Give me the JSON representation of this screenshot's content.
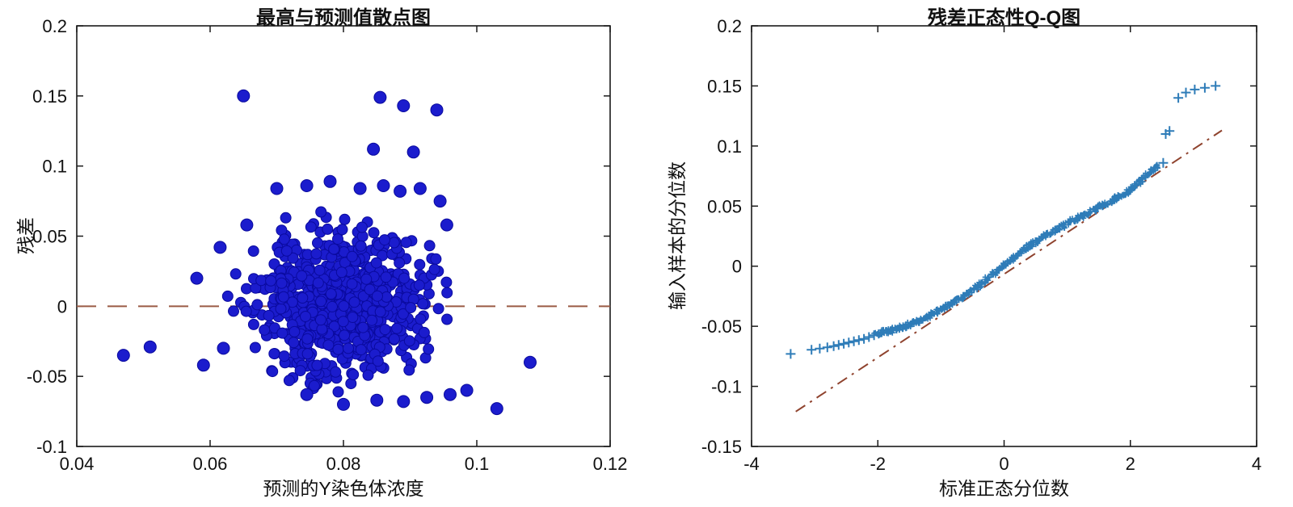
{
  "figure": {
    "background": "#ffffff",
    "axis_color": "#1a1a1a"
  },
  "chart_data": [
    {
      "type": "scatter",
      "title": "最高与预测值散点图",
      "xlabel": "预测的Y染色体浓度",
      "ylabel": "残差",
      "xlim": [
        0.04,
        0.12
      ],
      "ylim": [
        -0.1,
        0.2
      ],
      "xticks": [
        0.04,
        0.06,
        0.08,
        0.1,
        0.12
      ],
      "yticks": [
        -0.1,
        -0.05,
        0,
        0.05,
        0.1,
        0.15,
        0.2
      ],
      "grid": false,
      "legend_position": "none",
      "marker": {
        "shape": "circle",
        "fill": "#1b1ccd",
        "edge": "#0a0a9e",
        "radius": 6.5
      },
      "ref_line": {
        "type": "horizontal",
        "y": 0,
        "style": "dashed",
        "color": "#9a5b45",
        "width": 2
      },
      "cluster": {
        "center": [
          0.0795,
          0.003
        ],
        "std_x": 0.0063,
        "std_y": 0.0265,
        "count": 780,
        "seed": 11
      },
      "points": [
        [
          0.065,
          0.15
        ],
        [
          0.0855,
          0.149
        ],
        [
          0.089,
          0.143
        ],
        [
          0.094,
          0.14
        ],
        [
          0.0845,
          0.112
        ],
        [
          0.0905,
          0.11
        ],
        [
          0.07,
          0.084
        ],
        [
          0.0745,
          0.086
        ],
        [
          0.078,
          0.089
        ],
        [
          0.0825,
          0.084
        ],
        [
          0.086,
          0.086
        ],
        [
          0.0885,
          0.082
        ],
        [
          0.0915,
          0.084
        ],
        [
          0.0945,
          0.075
        ],
        [
          0.0655,
          0.058
        ],
        [
          0.0615,
          0.042
        ],
        [
          0.0955,
          0.058
        ],
        [
          0.058,
          0.02
        ],
        [
          0.047,
          -0.035
        ],
        [
          0.051,
          -0.029
        ],
        [
          0.059,
          -0.042
        ],
        [
          0.062,
          -0.03
        ],
        [
          0.0745,
          -0.063
        ],
        [
          0.08,
          -0.07
        ],
        [
          0.085,
          -0.067
        ],
        [
          0.089,
          -0.068
        ],
        [
          0.0925,
          -0.065
        ],
        [
          0.096,
          -0.063
        ],
        [
          0.0985,
          -0.06
        ],
        [
          0.103,
          -0.073
        ],
        [
          0.108,
          -0.04
        ]
      ]
    },
    {
      "type": "qq",
      "title": "残差正态性Q-Q图",
      "xlabel": "标准正态分位数",
      "ylabel": "输入样本的分位数",
      "xlim": [
        -4,
        4
      ],
      "ylim": [
        -0.15,
        0.2
      ],
      "xticks": [
        -4,
        -2,
        0,
        2,
        4
      ],
      "yticks": [
        -0.15,
        -0.1,
        -0.05,
        0,
        0.05,
        0.1,
        0.15,
        0.2
      ],
      "grid": false,
      "legend_position": "none",
      "marker": {
        "shape": "plus",
        "color": "#2e7cb8",
        "size_dense": 3.5,
        "size_tail": 6,
        "width": 1.6
      },
      "ref_line": {
        "type": "segment",
        "x1": -3.3,
        "y1": -0.121,
        "x2": 3.45,
        "y2": 0.113,
        "style": "dashdot",
        "color": "#8f432e",
        "width": 2
      },
      "curve": [
        [
          -2.05,
          -0.0565
        ],
        [
          -1.8,
          -0.0535
        ],
        [
          -1.6,
          -0.0505
        ],
        [
          -1.4,
          -0.0465
        ],
        [
          -1.2,
          -0.0415
        ],
        [
          -1.0,
          -0.036
        ],
        [
          -0.8,
          -0.03
        ],
        [
          -0.6,
          -0.0235
        ],
        [
          -0.4,
          -0.016
        ],
        [
          -0.2,
          -0.008
        ],
        [
          0,
          0.0005
        ],
        [
          0.2,
          0.009
        ],
        [
          0.4,
          0.0165
        ],
        [
          0.6,
          0.0235
        ],
        [
          0.8,
          0.0295
        ],
        [
          1.0,
          0.0355
        ],
        [
          1.2,
          0.041
        ],
        [
          1.4,
          0.046
        ],
        [
          1.6,
          0.0515
        ],
        [
          1.8,
          0.057
        ],
        [
          2.0,
          0.064
        ],
        [
          2.15,
          0.07
        ],
        [
          2.3,
          0.078
        ],
        [
          2.45,
          0.084
        ]
      ],
      "curve_density": 520,
      "curve_jitter": 0.004,
      "seed": 5,
      "tail_points": [
        [
          -3.38,
          -0.073
        ],
        [
          -3.05,
          -0.0695
        ],
        [
          -2.92,
          -0.0685
        ],
        [
          -2.8,
          -0.0675
        ],
        [
          -2.7,
          -0.0665
        ],
        [
          -2.62,
          -0.0655
        ],
        [
          -2.54,
          -0.0645
        ],
        [
          -2.46,
          -0.0635
        ],
        [
          -2.38,
          -0.0625
        ],
        [
          -2.3,
          -0.0615
        ],
        [
          -2.22,
          -0.0605
        ],
        [
          -2.14,
          -0.059
        ],
        [
          -2.06,
          -0.0575
        ],
        [
          2.52,
          0.086
        ],
        [
          2.56,
          0.11
        ],
        [
          2.62,
          0.1125
        ],
        [
          2.76,
          0.14
        ],
        [
          2.88,
          0.1445
        ],
        [
          3.02,
          0.147
        ],
        [
          3.18,
          0.1485
        ],
        [
          3.35,
          0.15
        ]
      ]
    }
  ]
}
